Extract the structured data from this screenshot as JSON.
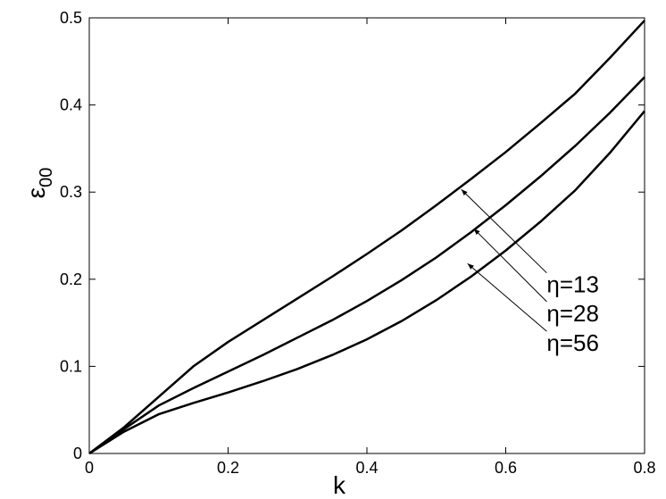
{
  "chart_data": {
    "type": "line",
    "xlabel": "k",
    "ylabel": {
      "text": "ε",
      "subscript": "00"
    },
    "x": [
      0,
      0.05,
      0.1,
      0.15,
      0.2,
      0.25,
      0.3,
      0.35,
      0.4,
      0.45,
      0.5,
      0.55,
      0.6,
      0.65,
      0.7,
      0.75,
      0.8
    ],
    "series": [
      {
        "color": "#000000",
        "values": [
          0,
          0.03,
          0.065,
          0.1,
          0.128,
          0.153,
          0.178,
          0.203,
          0.229,
          0.256,
          0.285,
          0.315,
          0.346,
          0.379,
          0.413,
          0.454,
          0.497
        ]
      },
      {
        "color": "#000000",
        "values": [
          0,
          0.028,
          0.055,
          0.075,
          0.094,
          0.113,
          0.133,
          0.153,
          0.175,
          0.199,
          0.225,
          0.254,
          0.285,
          0.318,
          0.353,
          0.391,
          0.432
        ]
      },
      {
        "color": "#000000",
        "values": [
          0,
          0.025,
          0.045,
          0.058,
          0.07,
          0.083,
          0.097,
          0.113,
          0.131,
          0.152,
          0.176,
          0.203,
          0.233,
          0.266,
          0.302,
          0.345,
          0.393
        ]
      }
    ],
    "annotations": [
      {
        "text": "η=13",
        "xy": [
          0.536,
          0.303
        ],
        "xytext": [
          0.659,
          0.195
        ]
      },
      {
        "text": "η=28",
        "xy": [
          0.554,
          0.258
        ],
        "xytext": [
          0.659,
          0.162
        ]
      },
      {
        "text": "η=56",
        "xy": [
          0.545,
          0.218
        ],
        "xytext": [
          0.659,
          0.128
        ]
      }
    ],
    "xlim": [
      0,
      0.8
    ],
    "ylim": [
      0,
      0.5
    ],
    "xticks": [
      0,
      0.2,
      0.4,
      0.6,
      0.8
    ],
    "yticks": [
      0,
      0.1,
      0.2,
      0.3,
      0.4,
      0.5
    ]
  }
}
